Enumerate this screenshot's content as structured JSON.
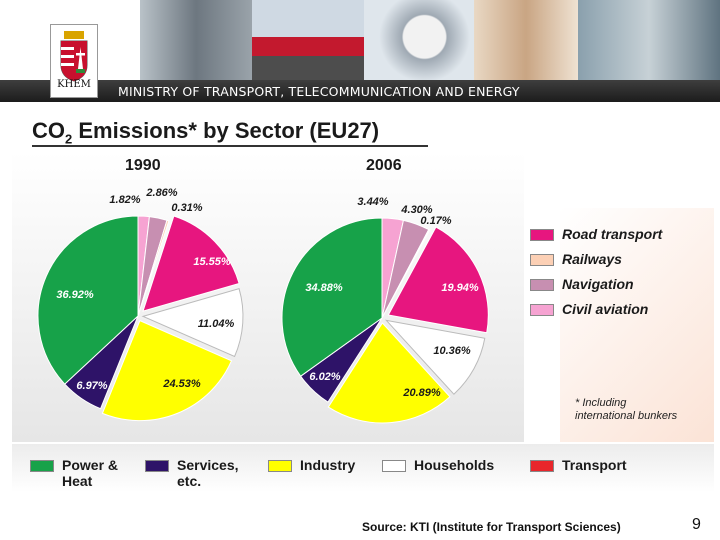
{
  "header": {
    "ministry": "MINISTRY OF TRANSPORT, TELECOMMUNICATION AND ENERGY",
    "crest_label": "KHEM"
  },
  "slide": {
    "page_number": "9",
    "source": "Source: KTI (Institute for Transport Sciences)"
  },
  "chart_data": [
    {
      "type": "pie",
      "title": "CO2 Emissions* by Sector (EU27)",
      "subtitle": "1990",
      "slices": [
        {
          "name": "Civil aviation",
          "value": 1.82,
          "label": "1.82%",
          "color": "#f6a3d2"
        },
        {
          "name": "Navigation",
          "value": 2.86,
          "label": "2.86%",
          "color": "#c78fb1"
        },
        {
          "name": "Railways",
          "value": 0.31,
          "label": "0.31%",
          "color": "#fcd0b5"
        },
        {
          "name": "Road transport",
          "value": 15.55,
          "label": "15.55%",
          "color": "#e7167f"
        },
        {
          "name": "Households",
          "value": 11.04,
          "label": "11.04%",
          "color": "#ffffff"
        },
        {
          "name": "Industry",
          "value": 24.53,
          "label": "24.53%",
          "color": "#ffff00"
        },
        {
          "name": "Services, etc.",
          "value": 6.97,
          "label": "6.97%",
          "color": "#2e1368"
        },
        {
          "name": "Power & Heat",
          "value": 36.92,
          "label": "36.92%",
          "color": "#17a249"
        }
      ]
    },
    {
      "type": "pie",
      "title": "CO2 Emissions* by Sector (EU27)",
      "subtitle": "2006",
      "slices": [
        {
          "name": "Civil aviation",
          "value": 3.44,
          "label": "3.44%",
          "color": "#f6a3d2"
        },
        {
          "name": "Navigation",
          "value": 4.3,
          "label": "4.30%",
          "color": "#c78fb1"
        },
        {
          "name": "Railways",
          "value": 0.17,
          "label": "0.17%",
          "color": "#fcd0b5"
        },
        {
          "name": "Road transport",
          "value": 19.94,
          "label": "19.94%",
          "color": "#e7167f"
        },
        {
          "name": "Households",
          "value": 10.36,
          "label": "10.36%",
          "color": "#ffffff"
        },
        {
          "name": "Industry",
          "value": 20.89,
          "label": "20.89%",
          "color": "#ffff00"
        },
        {
          "name": "Services, etc.",
          "value": 6.02,
          "label": "6.02%",
          "color": "#2e1368"
        },
        {
          "name": "Power & Heat",
          "value": 34.88,
          "label": "34.88%",
          "color": "#17a249"
        }
      ]
    }
  ],
  "legend": {
    "transport": [
      {
        "label": "Road transport",
        "color": "#e7167f"
      },
      {
        "label": "Railways",
        "color": "#fcd0b5"
      },
      {
        "label": "Navigation",
        "color": "#c78fb1"
      },
      {
        "label": "Civil aviation",
        "color": "#f6a3d2"
      }
    ],
    "sectors": [
      {
        "label": "Power &\nHeat",
        "color": "#17a249"
      },
      {
        "label": "Services,\netc.",
        "color": "#2e1368"
      },
      {
        "label": "Industry",
        "color": "#ffff00"
      },
      {
        "label": "Households",
        "color": "#ffffff"
      },
      {
        "label": "Transport",
        "color": "#e8262b"
      }
    ],
    "footnote": "* Including\n  international bunkers"
  }
}
